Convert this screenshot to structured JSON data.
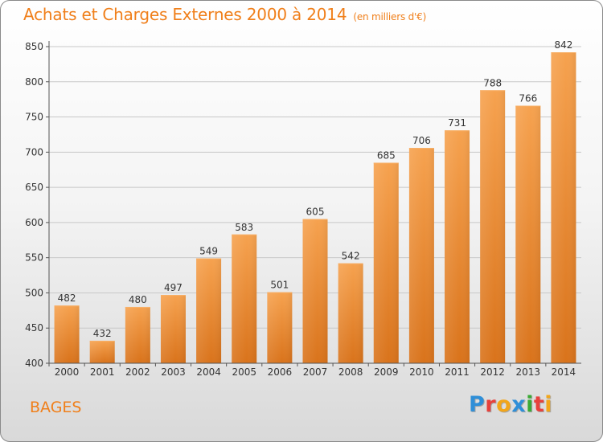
{
  "header": {
    "title": "Achats et Charges Externes 2000 à 2014",
    "subtitle": "(en milliers d'€)"
  },
  "footer": {
    "place": "BAGES",
    "logo_letters": [
      {
        "char": "P",
        "color": "#2f8fd8"
      },
      {
        "char": "r",
        "color": "#e8413c"
      },
      {
        "char": "o",
        "color": "#f2a61a"
      },
      {
        "char": "x",
        "color": "#2f8fd8"
      },
      {
        "char": "i",
        "color": "#3aaa35"
      },
      {
        "char": "t",
        "color": "#e8413c"
      },
      {
        "char": "i",
        "color": "#f2a61a"
      }
    ]
  },
  "colors": {
    "accent": "#f07f1a",
    "bar_light": "#f6a24f",
    "bar_dark": "#d9731b",
    "grid": "#c8c8c8"
  },
  "chart_data": {
    "type": "bar",
    "categories": [
      "2000",
      "2001",
      "2002",
      "2003",
      "2004",
      "2005",
      "2006",
      "2007",
      "2008",
      "2009",
      "2010",
      "2011",
      "2012",
      "2013",
      "2014"
    ],
    "values": [
      482,
      432,
      480,
      497,
      549,
      583,
      501,
      605,
      542,
      685,
      706,
      731,
      788,
      766,
      842
    ],
    "data_labels": [
      "482",
      "432",
      "480",
      "497",
      "549",
      "583",
      "501",
      "605",
      "542",
      "685",
      "706",
      "731",
      "788",
      "766",
      "842"
    ],
    "yticks": [
      400,
      450,
      500,
      550,
      600,
      650,
      700,
      750,
      800,
      850
    ],
    "ylim": [
      400,
      850
    ],
    "grid": true
  }
}
